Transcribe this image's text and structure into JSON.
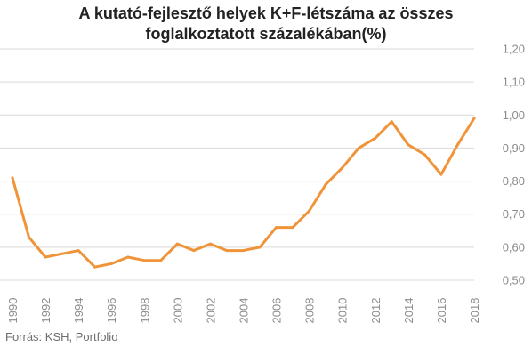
{
  "chart_data": {
    "type": "line",
    "title_lines": [
      "A kutató-fejlesztő helyek K+F-létszáma az összes",
      "foglalkoztatott százalékában(%)"
    ],
    "source": "Forrás: KSH, Portfolio",
    "xlabel": "",
    "ylabel": "",
    "x": [
      1990,
      1991,
      1992,
      1993,
      1994,
      1995,
      1996,
      1997,
      1998,
      1999,
      2000,
      2001,
      2002,
      2003,
      2004,
      2005,
      2006,
      2007,
      2008,
      2009,
      2010,
      2011,
      2012,
      2013,
      2014,
      2015,
      2016,
      2017,
      2018
    ],
    "series": [
      {
        "values": [
          0.81,
          0.63,
          0.57,
          0.58,
          0.59,
          0.54,
          0.55,
          0.57,
          0.56,
          0.56,
          0.61,
          0.59,
          0.61,
          0.59,
          0.59,
          0.6,
          0.66,
          0.66,
          0.71,
          0.79,
          0.84,
          0.9,
          0.93,
          0.98,
          0.91,
          0.88,
          0.82,
          0.91,
          0.99
        ]
      }
    ],
    "x_tick_labels": [
      "1990",
      "1992",
      "1994",
      "1996",
      "1998",
      "2000",
      "2002",
      "2004",
      "2006",
      "2008",
      "2010",
      "2012",
      "2014",
      "2016",
      "2018"
    ],
    "y_tick_labels": [
      "0,50",
      "0,60",
      "0,70",
      "0,80",
      "0,90",
      "1,00",
      "1,10",
      "1,20"
    ],
    "y_ticks": [
      0.5,
      0.6,
      0.7,
      0.8,
      0.9,
      1.0,
      1.1,
      1.2
    ],
    "ylim": [
      0.5,
      1.2
    ],
    "xlim": [
      1990,
      2018
    ],
    "y_axis_side": "right",
    "grid": true,
    "colors": {
      "line": "#F0943A",
      "grid": "#d9d9d9",
      "text": "#8c8c8c"
    }
  }
}
